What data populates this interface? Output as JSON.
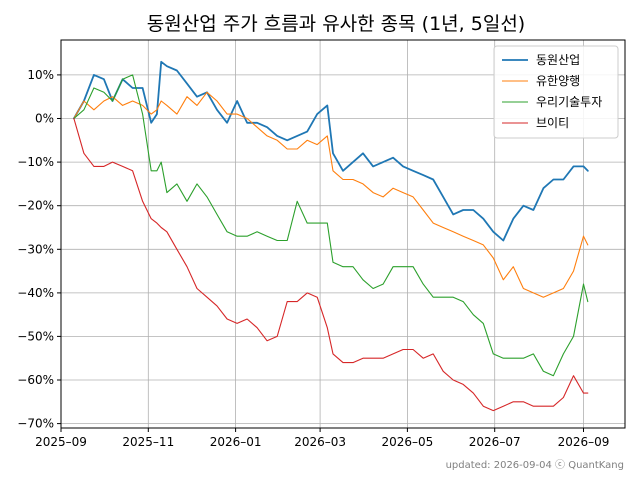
{
  "chart_data": {
    "type": "line",
    "title": "동원산업 주가 흐름과 유사한 종목 (1년, 5일선)",
    "footer": "updated: 2026-09-04 ⓒ QuantKang",
    "x_ticks": [
      "2025-09",
      "2025-11",
      "2026-01",
      "2026-03",
      "2026-05",
      "2026-07",
      "2026-09"
    ],
    "x_range": [
      "2025-09-01",
      "2026-09-30"
    ],
    "y_ticks": [
      10,
      0,
      -10,
      -20,
      -30,
      -40,
      -50,
      -60,
      -70
    ],
    "y_range": [
      -71,
      18
    ],
    "y_unit": "%",
    "grid": true,
    "legend_position": "top-right",
    "series": [
      {
        "name": "동원산업",
        "color": "#1f77b4",
        "points": [
          [
            "2025-09-10",
            0
          ],
          [
            "2025-09-17",
            4
          ],
          [
            "2025-09-24",
            10
          ],
          [
            "2025-10-01",
            9
          ],
          [
            "2025-10-07",
            4
          ],
          [
            "2025-10-14",
            9
          ],
          [
            "2025-10-21",
            7
          ],
          [
            "2025-10-28",
            7
          ],
          [
            "2025-11-03",
            -1
          ],
          [
            "2025-11-07",
            1
          ],
          [
            "2025-11-10",
            13
          ],
          [
            "2025-11-14",
            12
          ],
          [
            "2025-11-21",
            11
          ],
          [
            "2025-11-28",
            8
          ],
          [
            "2025-12-05",
            5
          ],
          [
            "2025-12-12",
            6
          ],
          [
            "2025-12-19",
            2
          ],
          [
            "2025-12-26",
            -1
          ],
          [
            "2026-01-02",
            4
          ],
          [
            "2026-01-09",
            -1
          ],
          [
            "2026-01-16",
            -1
          ],
          [
            "2026-01-23",
            -2
          ],
          [
            "2026-01-30",
            -4
          ],
          [
            "2026-02-06",
            -5
          ],
          [
            "2026-02-13",
            -4
          ],
          [
            "2026-02-20",
            -3
          ],
          [
            "2026-02-27",
            1
          ],
          [
            "2026-03-06",
            3
          ],
          [
            "2026-03-10",
            -8
          ],
          [
            "2026-03-17",
            -12
          ],
          [
            "2026-03-24",
            -10
          ],
          [
            "2026-03-31",
            -8
          ],
          [
            "2026-04-07",
            -11
          ],
          [
            "2026-04-14",
            -10
          ],
          [
            "2026-04-21",
            -9
          ],
          [
            "2026-04-28",
            -11
          ],
          [
            "2026-05-05",
            -12
          ],
          [
            "2026-05-12",
            -13
          ],
          [
            "2026-05-19",
            -14
          ],
          [
            "2026-05-26",
            -18
          ],
          [
            "2026-06-02",
            -22
          ],
          [
            "2026-06-09",
            -21
          ],
          [
            "2026-06-16",
            -21
          ],
          [
            "2026-06-23",
            -23
          ],
          [
            "2026-06-30",
            -26
          ],
          [
            "2026-07-07",
            -28
          ],
          [
            "2026-07-14",
            -23
          ],
          [
            "2026-07-21",
            -20
          ],
          [
            "2026-07-28",
            -21
          ],
          [
            "2026-08-04",
            -16
          ],
          [
            "2026-08-11",
            -14
          ],
          [
            "2026-08-18",
            -14
          ],
          [
            "2026-08-25",
            -11
          ],
          [
            "2026-09-01",
            -11
          ],
          [
            "2026-09-04",
            -12
          ]
        ]
      },
      {
        "name": "유한양행",
        "color": "#ff7f0e",
        "points": [
          [
            "2025-09-10",
            0
          ],
          [
            "2025-09-17",
            4
          ],
          [
            "2025-09-24",
            2
          ],
          [
            "2025-10-01",
            4
          ],
          [
            "2025-10-07",
            5
          ],
          [
            "2025-10-14",
            3
          ],
          [
            "2025-10-21",
            4
          ],
          [
            "2025-10-28",
            3
          ],
          [
            "2025-11-03",
            1
          ],
          [
            "2025-11-07",
            2
          ],
          [
            "2025-11-10",
            4
          ],
          [
            "2025-11-14",
            3
          ],
          [
            "2025-11-21",
            1
          ],
          [
            "2025-11-28",
            5
          ],
          [
            "2025-12-05",
            3
          ],
          [
            "2025-12-12",
            6
          ],
          [
            "2025-12-19",
            4
          ],
          [
            "2025-12-26",
            1
          ],
          [
            "2026-01-02",
            1
          ],
          [
            "2026-01-09",
            0
          ],
          [
            "2026-01-16",
            -2
          ],
          [
            "2026-01-23",
            -4
          ],
          [
            "2026-01-30",
            -5
          ],
          [
            "2026-02-06",
            -7
          ],
          [
            "2026-02-13",
            -7
          ],
          [
            "2026-02-20",
            -5
          ],
          [
            "2026-02-27",
            -6
          ],
          [
            "2026-03-06",
            -4
          ],
          [
            "2026-03-10",
            -12
          ],
          [
            "2026-03-17",
            -14
          ],
          [
            "2026-03-24",
            -14
          ],
          [
            "2026-03-31",
            -15
          ],
          [
            "2026-04-07",
            -17
          ],
          [
            "2026-04-14",
            -18
          ],
          [
            "2026-04-21",
            -16
          ],
          [
            "2026-04-28",
            -17
          ],
          [
            "2026-05-05",
            -18
          ],
          [
            "2026-05-12",
            -21
          ],
          [
            "2026-05-19",
            -24
          ],
          [
            "2026-05-26",
            -25
          ],
          [
            "2026-06-02",
            -26
          ],
          [
            "2026-06-09",
            -27
          ],
          [
            "2026-06-16",
            -28
          ],
          [
            "2026-06-23",
            -29
          ],
          [
            "2026-06-30",
            -32
          ],
          [
            "2026-07-07",
            -37
          ],
          [
            "2026-07-14",
            -34
          ],
          [
            "2026-07-21",
            -39
          ],
          [
            "2026-07-28",
            -40
          ],
          [
            "2026-08-04",
            -41
          ],
          [
            "2026-08-11",
            -40
          ],
          [
            "2026-08-18",
            -39
          ],
          [
            "2026-08-25",
            -35
          ],
          [
            "2026-09-01",
            -27
          ],
          [
            "2026-09-04",
            -29
          ]
        ]
      },
      {
        "name": "우리기술투자",
        "color": "#2ca02c",
        "points": [
          [
            "2025-09-10",
            0
          ],
          [
            "2025-09-17",
            2
          ],
          [
            "2025-09-24",
            7
          ],
          [
            "2025-10-01",
            6
          ],
          [
            "2025-10-07",
            4
          ],
          [
            "2025-10-14",
            9
          ],
          [
            "2025-10-21",
            10
          ],
          [
            "2025-10-28",
            1
          ],
          [
            "2025-11-03",
            -12
          ],
          [
            "2025-11-07",
            -12
          ],
          [
            "2025-11-10",
            -10
          ],
          [
            "2025-11-14",
            -17
          ],
          [
            "2025-11-21",
            -15
          ],
          [
            "2025-11-28",
            -19
          ],
          [
            "2025-12-05",
            -15
          ],
          [
            "2025-12-12",
            -18
          ],
          [
            "2025-12-19",
            -22
          ],
          [
            "2025-12-26",
            -26
          ],
          [
            "2026-01-02",
            -27
          ],
          [
            "2026-01-09",
            -27
          ],
          [
            "2026-01-16",
            -26
          ],
          [
            "2026-01-23",
            -27
          ],
          [
            "2026-01-30",
            -28
          ],
          [
            "2026-02-06",
            -28
          ],
          [
            "2026-02-13",
            -19
          ],
          [
            "2026-02-20",
            -24
          ],
          [
            "2026-02-27",
            -24
          ],
          [
            "2026-03-06",
            -24
          ],
          [
            "2026-03-10",
            -33
          ],
          [
            "2026-03-17",
            -34
          ],
          [
            "2026-03-24",
            -34
          ],
          [
            "2026-03-31",
            -37
          ],
          [
            "2026-04-07",
            -39
          ],
          [
            "2026-04-14",
            -38
          ],
          [
            "2026-04-21",
            -34
          ],
          [
            "2026-04-28",
            -34
          ],
          [
            "2026-05-05",
            -34
          ],
          [
            "2026-05-12",
            -38
          ],
          [
            "2026-05-19",
            -41
          ],
          [
            "2026-05-26",
            -41
          ],
          [
            "2026-06-02",
            -41
          ],
          [
            "2026-06-09",
            -42
          ],
          [
            "2026-06-16",
            -45
          ],
          [
            "2026-06-23",
            -47
          ],
          [
            "2026-06-30",
            -54
          ],
          [
            "2026-07-07",
            -55
          ],
          [
            "2026-07-14",
            -55
          ],
          [
            "2026-07-21",
            -55
          ],
          [
            "2026-07-28",
            -54
          ],
          [
            "2026-08-04",
            -58
          ],
          [
            "2026-08-11",
            -59
          ],
          [
            "2026-08-18",
            -54
          ],
          [
            "2026-08-25",
            -50
          ],
          [
            "2026-09-01",
            -38
          ],
          [
            "2026-09-04",
            -42
          ]
        ]
      },
      {
        "name": "브이티",
        "color": "#d62728",
        "points": [
          [
            "2025-09-10",
            0
          ],
          [
            "2025-09-17",
            -8
          ],
          [
            "2025-09-24",
            -11
          ],
          [
            "2025-10-01",
            -11
          ],
          [
            "2025-10-07",
            -10
          ],
          [
            "2025-10-14",
            -11
          ],
          [
            "2025-10-21",
            -12
          ],
          [
            "2025-10-28",
            -19
          ],
          [
            "2025-11-03",
            -23
          ],
          [
            "2025-11-07",
            -24
          ],
          [
            "2025-11-10",
            -25
          ],
          [
            "2025-11-14",
            -26
          ],
          [
            "2025-11-21",
            -30
          ],
          [
            "2025-11-28",
            -34
          ],
          [
            "2025-12-05",
            -39
          ],
          [
            "2025-12-12",
            -41
          ],
          [
            "2025-12-19",
            -43
          ],
          [
            "2025-12-26",
            -46
          ],
          [
            "2026-01-02",
            -47
          ],
          [
            "2026-01-09",
            -46
          ],
          [
            "2026-01-16",
            -48
          ],
          [
            "2026-01-23",
            -51
          ],
          [
            "2026-01-30",
            -50
          ],
          [
            "2026-02-06",
            -42
          ],
          [
            "2026-02-13",
            -42
          ],
          [
            "2026-02-20",
            -40
          ],
          [
            "2026-02-27",
            -41
          ],
          [
            "2026-03-06",
            -48
          ],
          [
            "2026-03-10",
            -54
          ],
          [
            "2026-03-17",
            -56
          ],
          [
            "2026-03-24",
            -56
          ],
          [
            "2026-03-31",
            -55
          ],
          [
            "2026-04-07",
            -55
          ],
          [
            "2026-04-14",
            -55
          ],
          [
            "2026-04-21",
            -54
          ],
          [
            "2026-04-28",
            -53
          ],
          [
            "2026-05-05",
            -53
          ],
          [
            "2026-05-12",
            -55
          ],
          [
            "2026-05-19",
            -54
          ],
          [
            "2026-05-26",
            -58
          ],
          [
            "2026-06-02",
            -60
          ],
          [
            "2026-06-09",
            -61
          ],
          [
            "2026-06-16",
            -63
          ],
          [
            "2026-06-23",
            -66
          ],
          [
            "2026-06-30",
            -67
          ],
          [
            "2026-07-07",
            -66
          ],
          [
            "2026-07-14",
            -65
          ],
          [
            "2026-07-21",
            -65
          ],
          [
            "2026-07-28",
            -66
          ],
          [
            "2026-08-04",
            -66
          ],
          [
            "2026-08-11",
            -66
          ],
          [
            "2026-08-18",
            -64
          ],
          [
            "2026-08-25",
            -59
          ],
          [
            "2026-09-01",
            -63
          ],
          [
            "2026-09-04",
            -63
          ]
        ]
      }
    ]
  }
}
